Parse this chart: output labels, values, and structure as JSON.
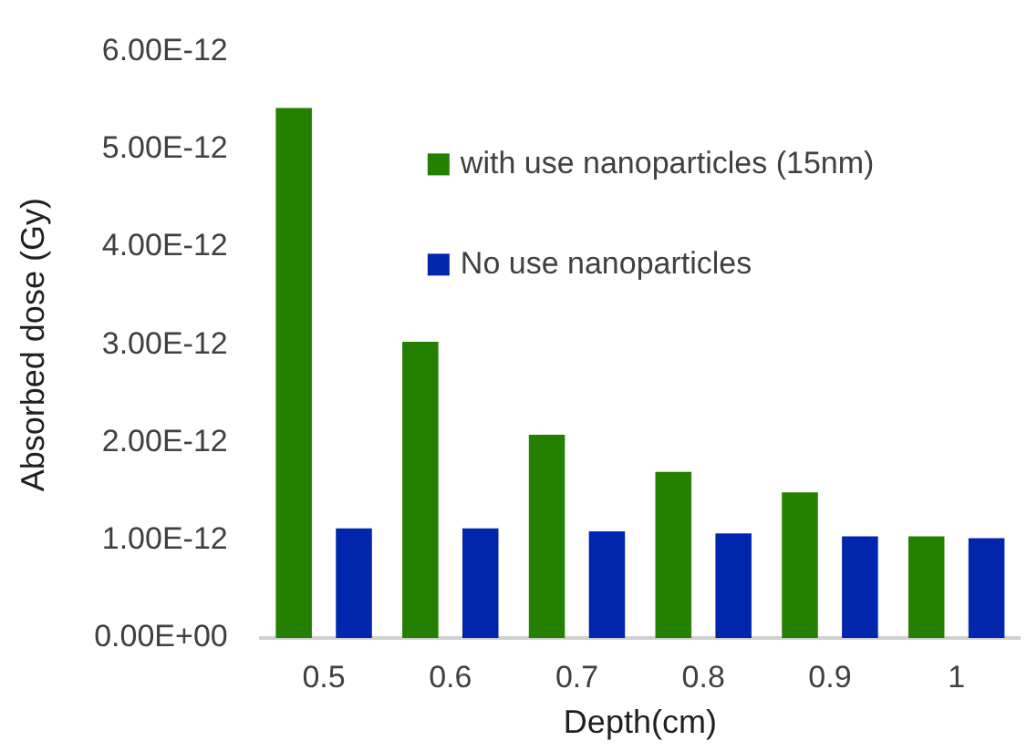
{
  "chart_data": {
    "type": "bar",
    "xlabel": "Depth(cm)",
    "ylabel": "Absorbed dose (Gy)",
    "categories": [
      "0.5",
      "0.6",
      "0.7",
      "0.8",
      "0.9",
      "1"
    ],
    "series": [
      {
        "name": "with use nanoparticles (15nm)",
        "color": "#238000",
        "values": [
          5.42e-12,
          3.03e-12,
          2.08e-12,
          1.7e-12,
          1.49e-12,
          1.04e-12
        ]
      },
      {
        "name": "No use nanoparticles",
        "color": "#0026ad",
        "values": [
          1.12e-12,
          1.12e-12,
          1.09e-12,
          1.07e-12,
          1.04e-12,
          1.02e-12
        ]
      }
    ],
    "ylim": [
      0,
      6e-12
    ],
    "yticks": [
      {
        "value": 0,
        "label": "0.00E+00"
      },
      {
        "value": 1e-12,
        "label": "1.00E-12"
      },
      {
        "value": 2e-12,
        "label": "2.00E-12"
      },
      {
        "value": 3e-12,
        "label": "3.00E-12"
      },
      {
        "value": 4e-12,
        "label": "4.00E-12"
      },
      {
        "value": 5e-12,
        "label": "5.00E-12"
      },
      {
        "value": 6e-12,
        "label": "6.00E-12"
      }
    ],
    "grid": false,
    "legend": "top right"
  }
}
